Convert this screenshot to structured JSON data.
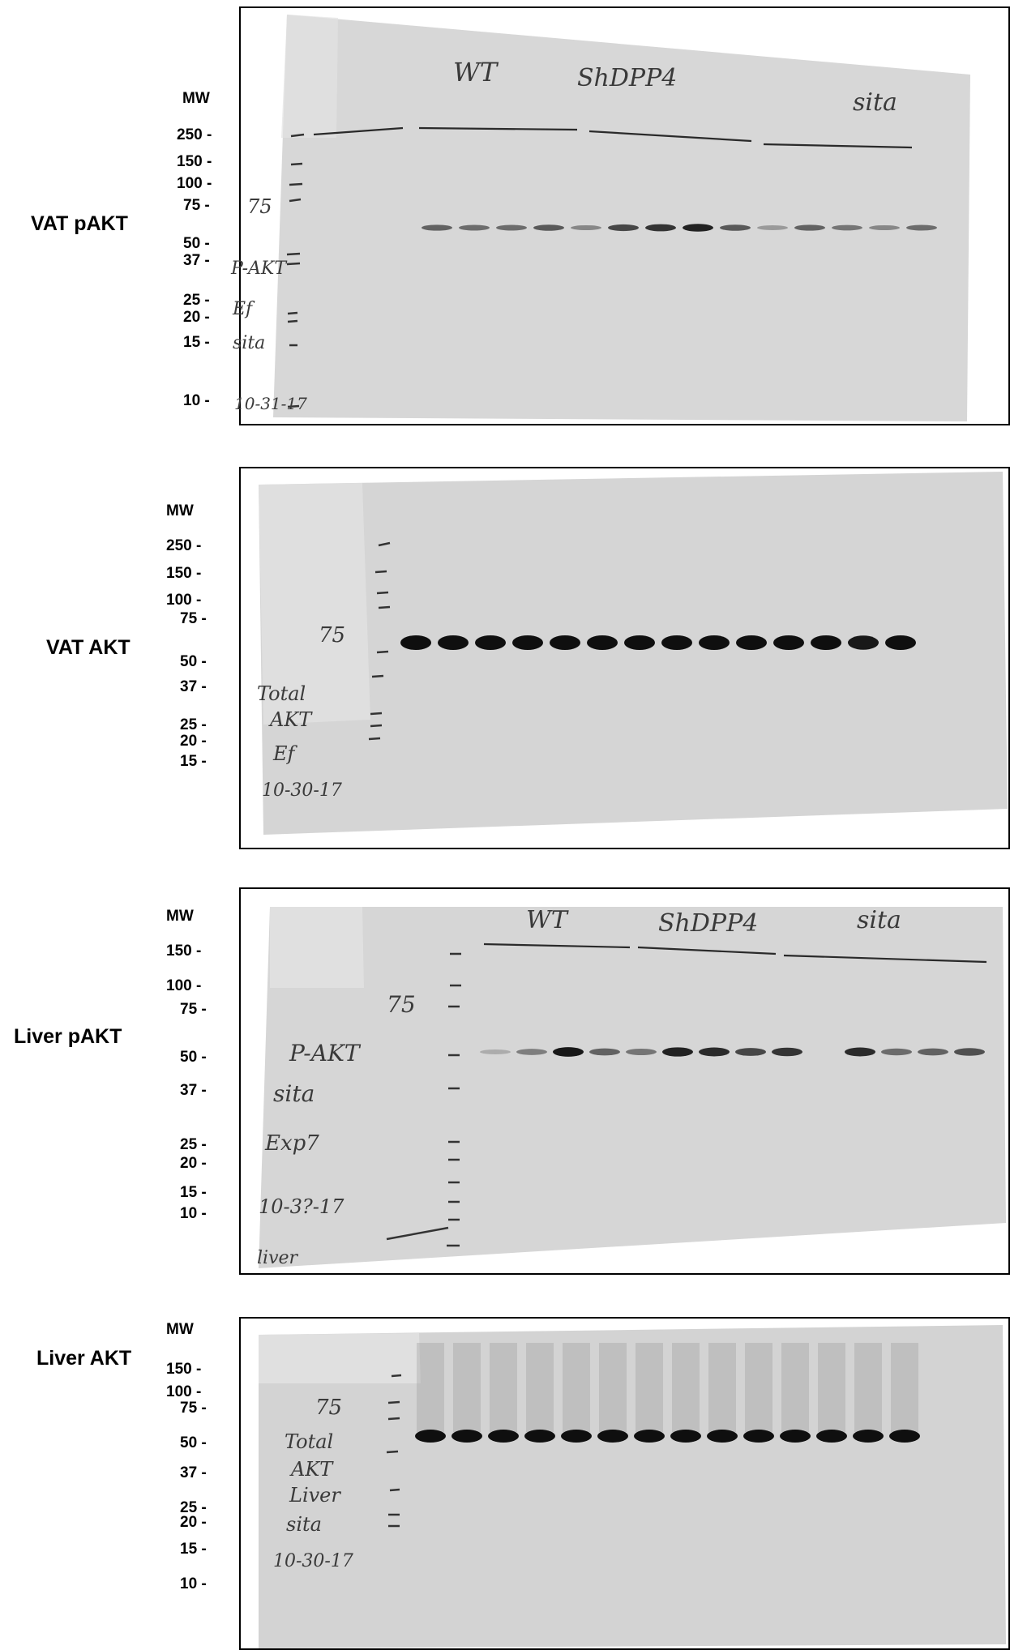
{
  "panels": [
    {
      "title": "VAT pAKT",
      "mw_header": "MW",
      "mw_markers": [
        "250 -",
        "150 -",
        "100 -",
        "75 -",
        "50 -",
        "37 -",
        "25 -",
        "20 -",
        "15 -",
        "10 -"
      ],
      "group_labels": [
        "WT",
        "ShDPP4",
        "sita"
      ],
      "side_notes": [
        "75",
        "P-AKT",
        "Ef",
        "sita",
        "10-31-17"
      ],
      "band_intensity": [
        0.55,
        0.5,
        0.5,
        0.6,
        0.35,
        0.7,
        0.8,
        0.9,
        0.6,
        0.25,
        0.55,
        0.45,
        0.35,
        0.5
      ]
    },
    {
      "title": "VAT AKT",
      "mw_header": "MW",
      "mw_markers": [
        "250 -",
        "150 -",
        "100 -",
        "75 -",
        "50 -",
        "37 -",
        "25 -",
        "20 -",
        "15 -"
      ],
      "side_notes": [
        "75",
        "Total",
        "AKT",
        "Ef",
        "10-30-17"
      ],
      "band_intensity": [
        1,
        1,
        1,
        1,
        1,
        1,
        1,
        1,
        1,
        1,
        1,
        1,
        0.95,
        1
      ]
    },
    {
      "title": "Liver pAKT",
      "mw_header": "MW",
      "mw_markers": [
        "150 -",
        "100 -",
        "75 -",
        "50 -",
        "37 -",
        "25 -",
        "20 -",
        "15 -",
        "10 -"
      ],
      "group_labels": [
        "WT",
        "ShDPP4",
        "sita"
      ],
      "side_notes": [
        "75",
        "P-AKT",
        "sita",
        "Exp7",
        "10-3?-17",
        "liver"
      ],
      "band_intensity": [
        0.15,
        0.4,
        0.95,
        0.55,
        0.45,
        0.9,
        0.85,
        0.7,
        0.8,
        0,
        0.85,
        0.5,
        0.55,
        0.65
      ]
    },
    {
      "title": "Liver AKT",
      "mw_header": "MW",
      "mw_markers": [
        "150 -",
        "100 -",
        "75 -",
        "50 -",
        "37 -",
        "25 -",
        "20 -",
        "15 -",
        "10 -"
      ],
      "side_notes": [
        "75",
        "Total",
        "AKT",
        "Liver",
        "sita",
        "10-30-17"
      ],
      "band_intensity": [
        1,
        1,
        1,
        1,
        1,
        1,
        1,
        1,
        1,
        1,
        1,
        1,
        1,
        1
      ]
    }
  ]
}
